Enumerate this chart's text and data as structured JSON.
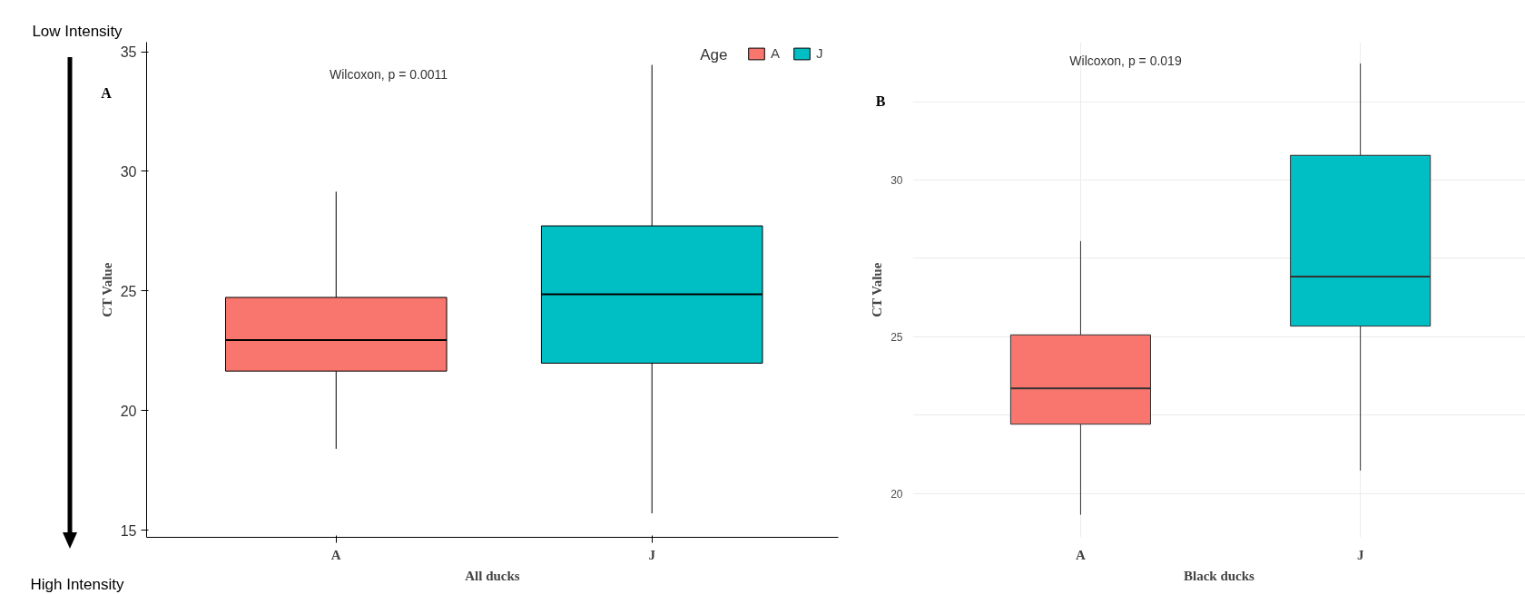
{
  "chart_data": [
    {
      "type": "box",
      "categories": [
        "A",
        "J"
      ],
      "series": [
        {
          "name": "A",
          "color": "#f8766d",
          "boxes": [
            {
              "low": 18.4,
              "q1": 21.65,
              "median": 22.95,
              "q3": 24.73,
              "high": 29.15
            },
            null
          ]
        },
        {
          "name": "J",
          "color": "#00bfc4",
          "boxes": [
            null,
            {
              "low": 15.7,
              "q1": 21.98,
              "median": 24.86,
              "q3": 27.72,
              "high": 34.45
            }
          ]
        }
      ],
      "ylim": [
        14.7,
        35.4
      ],
      "yticks": [
        15,
        20,
        25,
        30,
        35
      ],
      "xlabel": "All ducks",
      "ylabel": "CT Value",
      "legend": "top right",
      "legend_title": "Age",
      "grid": false,
      "annotations": [
        "Wilcoxon, p = 0.0011",
        "A",
        "Low Intensity",
        "High Intensity"
      ]
    },
    {
      "type": "box",
      "categories": [
        "A",
        "J"
      ],
      "series": [
        {
          "color": "#f8766d",
          "boxes": [
            {
              "low": 19.32,
              "q1": 22.21,
              "median": 23.35,
              "q3": 25.06,
              "high": 28.05
            },
            null
          ]
        },
        {
          "color": "#00bfc4",
          "boxes": [
            null,
            {
              "low": 20.73,
              "q1": 25.34,
              "median": 26.92,
              "q3": 30.79,
              "high": 33.72
            }
          ]
        }
      ],
      "ylim": [
        18.6,
        34.4
      ],
      "yticks": [
        20,
        {
          "value": 22.5,
          "label": null
        },
        25,
        {
          "value": 27.5,
          "label": null
        },
        30,
        {
          "value": 32.5,
          "label": null
        }
      ],
      "xlabel": "Black ducks",
      "ylabel": "CT Value",
      "grid": true,
      "annotations": [
        "Wilcoxon, p = 0.019",
        "B"
      ]
    }
  ]
}
